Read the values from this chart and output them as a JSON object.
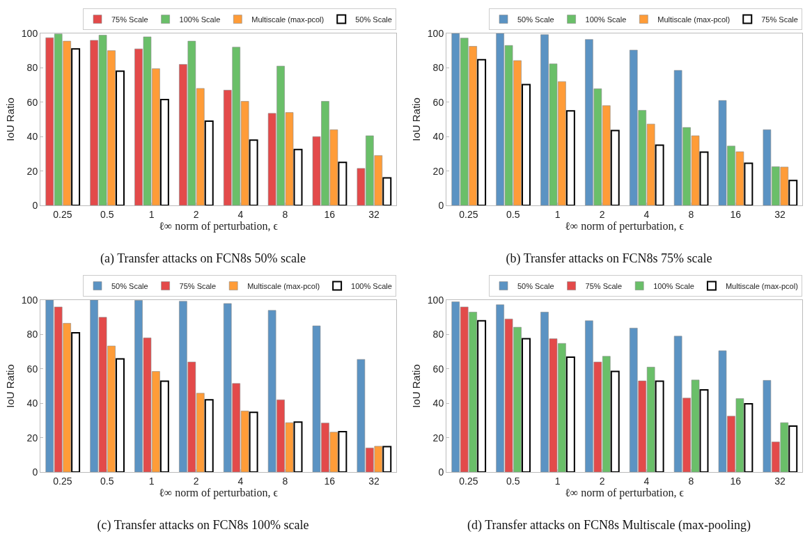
{
  "chart_data": [
    {
      "type": "bar",
      "title": "(a) Transfer attacks on FCN8s 50% scale",
      "xlabel": "ℓ∞ norm of perturbation, ϵ",
      "ylabel": "IoU Ratio",
      "categories": [
        "0.25",
        "0.5",
        "1",
        "2",
        "4",
        "8",
        "16",
        "32"
      ],
      "ylim": [
        0,
        100
      ],
      "yticks": [
        0,
        20,
        40,
        60,
        80,
        100
      ],
      "legend": "top right",
      "series": [
        {
          "name": "75% Scale",
          "color": "#e34a4a",
          "values": [
            97.5,
            96,
            91,
            82,
            67,
            53.5,
            40,
            21.5
          ]
        },
        {
          "name": "100% Scale",
          "color": "#6abf69",
          "values": [
            99.7,
            99,
            98,
            95.5,
            92,
            81,
            60.5,
            40.5
          ]
        },
        {
          "name": "Multiscale (max-pcol)",
          "color": "#ff9c38",
          "values": [
            95.5,
            90,
            79.5,
            68,
            60.5,
            54,
            44,
            29
          ]
        },
        {
          "name": "50% Scale",
          "color": "#ffffff",
          "values": [
            91,
            78,
            61.5,
            49,
            38,
            32.5,
            25,
            16
          ]
        }
      ]
    },
    {
      "type": "bar",
      "title": "(b) Transfer attacks on FCN8s 75% scale",
      "xlabel": "ℓ∞ norm of perturbation, ϵ",
      "ylabel": "IoU Ratio",
      "categories": [
        "0.25",
        "0.5",
        "1",
        "2",
        "4",
        "8",
        "16",
        "32"
      ],
      "ylim": [
        0,
        100
      ],
      "yticks": [
        0,
        20,
        40,
        60,
        80,
        100
      ],
      "legend": "top right",
      "series": [
        {
          "name": "50% Scale",
          "color": "#5b93c3",
          "values": [
            100,
            100,
            99.3,
            96.5,
            90.3,
            78.5,
            61,
            44
          ]
        },
        {
          "name": "100% Scale",
          "color": "#6abf69",
          "values": [
            97.3,
            93,
            82.3,
            67.8,
            55.3,
            45.3,
            34.5,
            22.5
          ]
        },
        {
          "name": "Multiscale (max-pcol)",
          "color": "#ff9c38",
          "values": [
            92.5,
            84.2,
            72,
            58,
            47.3,
            40.5,
            31.2,
            22.3
          ]
        },
        {
          "name": "75% Scale",
          "color": "#ffffff",
          "values": [
            84.7,
            70.2,
            55,
            43.5,
            35,
            31,
            24.5,
            14.5
          ]
        }
      ]
    },
    {
      "type": "bar",
      "title": "(c) Transfer attacks on FCN8s 100% scale",
      "xlabel": "ℓ∞ norm of perturbation, ϵ",
      "ylabel": "IoU Ratio",
      "categories": [
        "0.25",
        "0.5",
        "1",
        "2",
        "4",
        "8",
        "16",
        "32"
      ],
      "ylim": [
        0,
        100
      ],
      "yticks": [
        0,
        20,
        40,
        60,
        80,
        100
      ],
      "legend": "top right",
      "series": [
        {
          "name": "50% Scale",
          "color": "#5b93c3",
          "values": [
            100,
            100,
            99.8,
            99.3,
            98,
            94,
            85,
            65.5
          ]
        },
        {
          "name": "75% Scale",
          "color": "#e34a4a",
          "values": [
            96,
            90,
            78,
            64,
            51.5,
            42,
            28.5,
            14
          ]
        },
        {
          "name": "Multiscale (max-pcol)",
          "color": "#ff9c38",
          "values": [
            86.5,
            73.3,
            58.5,
            45.8,
            35.5,
            28.7,
            23.2,
            15
          ]
        },
        {
          "name": "100% Scale",
          "color": "#ffffff",
          "values": [
            81,
            65.8,
            52.8,
            42,
            34.7,
            29,
            23.5,
            14.8
          ]
        }
      ]
    },
    {
      "type": "bar",
      "title": "(d) Transfer attacks on FCN8s Multiscale (max-pooling)",
      "xlabel": "ℓ∞ norm of perturbation, ϵ",
      "ylabel": "IoU Ratio",
      "categories": [
        "0.25",
        "0.5",
        "1",
        "2",
        "4",
        "8",
        "16",
        "32"
      ],
      "ylim": [
        0,
        100
      ],
      "yticks": [
        0,
        20,
        40,
        60,
        80,
        100
      ],
      "legend": "top right",
      "series": [
        {
          "name": "50% Scale",
          "color": "#5b93c3",
          "values": [
            99,
            97.3,
            93,
            88,
            83.7,
            79,
            70.5,
            53.3
          ]
        },
        {
          "name": "75% Scale",
          "color": "#e34a4a",
          "values": [
            96,
            89,
            77.5,
            64,
            53,
            43,
            32.5,
            17.5
          ]
        },
        {
          "name": "100% Scale",
          "color": "#6abf69",
          "values": [
            93,
            84.2,
            74.8,
            67.3,
            61,
            53.5,
            42.7,
            28.7
          ]
        },
        {
          "name": "Multiscale (max-pcol)",
          "color": "#ffffff",
          "values": [
            88,
            77.5,
            66.8,
            58.5,
            52.8,
            47.8,
            39.7,
            26.7
          ]
        }
      ]
    }
  ]
}
